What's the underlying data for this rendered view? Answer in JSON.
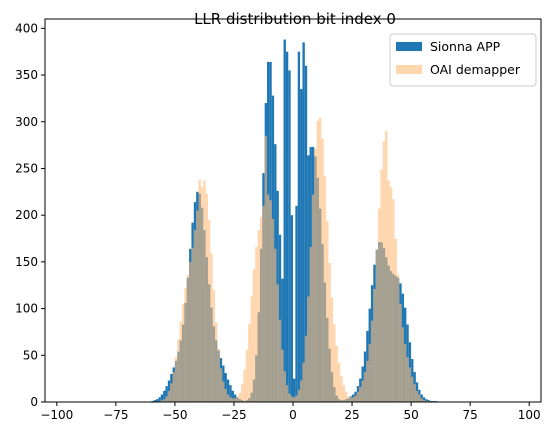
{
  "chart_data": {
    "type": "histogram",
    "title": "LLR distribution bit index 0",
    "xlabel": "",
    "ylabel": "",
    "xlim": [
      -105,
      105
    ],
    "ylim": [
      0,
      410
    ],
    "x_ticks": [
      -100,
      -75,
      -50,
      -25,
      0,
      25,
      50,
      75,
      100
    ],
    "x_tick_labels": [
      "−100",
      "−75",
      "−50",
      "−25",
      "0",
      "25",
      "50",
      "75",
      "100"
    ],
    "y_ticks": [
      0,
      50,
      100,
      150,
      200,
      250,
      300,
      350,
      400
    ],
    "y_tick_labels": [
      "0",
      "50",
      "100",
      "150",
      "200",
      "250",
      "300",
      "350",
      "400"
    ],
    "bin_width": 1,
    "grid": false,
    "legend_position": "top-right",
    "series": [
      {
        "name": "Sionna APP",
        "color": "#1f77b4",
        "opacity": 1.0,
        "components": [
          {
            "center": -40,
            "peak": 185,
            "sigma": 6.0
          },
          {
            "center": -10,
            "peak": 300,
            "sigma": 3.0
          },
          {
            "center": -5,
            "peak": 110,
            "sigma": 2.0
          },
          {
            "center": 5,
            "peak": 110,
            "sigma": 2.0
          },
          {
            "center": 10,
            "peak": 300,
            "sigma": 3.0
          },
          {
            "center": 40,
            "peak": 185,
            "sigma": 6.0
          }
        ],
        "overrides": [
          [
            -4,
            388
          ],
          [
            -3,
            375
          ],
          [
            -2,
            355
          ],
          [
            -1,
            200
          ],
          [
            0,
            25
          ],
          [
            1,
            210
          ],
          [
            2,
            375
          ],
          [
            3,
            335
          ],
          [
            4,
            385
          ],
          [
            5,
            360
          ]
        ]
      },
      {
        "name": "OAI demapper",
        "color": "#ffbb78",
        "opacity": 0.6,
        "components": [
          {
            "center": -40,
            "peak": 240,
            "sigma": 5.0
          },
          {
            "center": -12,
            "peak": 270,
            "sigma": 4.0
          },
          {
            "center": 12,
            "peak": 270,
            "sigma": 4.0
          },
          {
            "center": 40,
            "peak": 240,
            "sigma": 5.0
          }
        ],
        "overrides": [
          [
            -40,
            238
          ],
          [
            -39,
            230
          ],
          [
            40,
            237
          ],
          [
            41,
            230
          ],
          [
            -12,
            285
          ],
          [
            12,
            282
          ]
        ]
      }
    ]
  }
}
